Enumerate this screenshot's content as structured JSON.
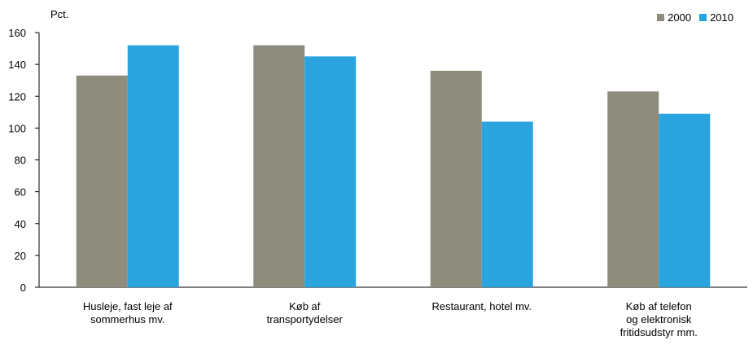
{
  "chart_data": {
    "type": "bar",
    "ylabel": "Pct.",
    "categories": [
      [
        "Husleje, fast leje af",
        "sommerhus mv."
      ],
      [
        "Køb af",
        "transportydelser"
      ],
      [
        "Restaurant, hotel mv."
      ],
      [
        "Køb af telefon",
        "og elektronisk",
        "fritidsudstyr mm."
      ]
    ],
    "series": [
      {
        "name": "2000",
        "color": "#8d8c7d",
        "values": [
          133,
          152,
          136,
          123
        ]
      },
      {
        "name": "2010",
        "color": "#29a4de",
        "values": [
          152,
          145,
          104,
          109
        ]
      }
    ],
    "ylim": [
      0,
      160
    ],
    "yticks": [
      0,
      20,
      40,
      60,
      80,
      100,
      120,
      140,
      160
    ],
    "grid": false,
    "legend_position": "top-right"
  }
}
